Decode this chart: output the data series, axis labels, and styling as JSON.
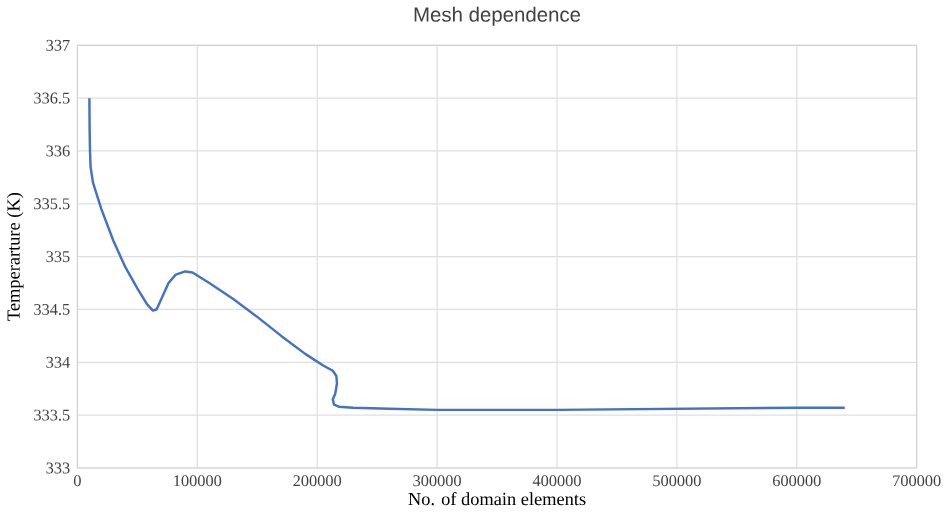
{
  "chart_data": {
    "type": "line",
    "title": "Mesh dependence",
    "xlabel": "No. of domain elements",
    "ylabel": "Temperarture (K)",
    "series": [
      {
        "color": "#4472c4",
        "x": [
          10000,
          10200,
          10500,
          11000,
          13000,
          20000,
          30000,
          40000,
          50000,
          58000,
          63000,
          66000,
          70000,
          76000,
          82000,
          90000,
          96000,
          110000,
          130000,
          150000,
          170000,
          190000,
          205000,
          213000,
          216000,
          216500,
          215000,
          213000,
          214000,
          218000,
          230000,
          260000,
          300000,
          400000,
          500000,
          600000,
          640000
        ],
        "values": [
          336.5,
          336.2,
          336.0,
          335.85,
          335.7,
          335.45,
          335.15,
          334.9,
          334.7,
          334.55,
          334.49,
          334.5,
          334.6,
          334.75,
          334.83,
          334.86,
          334.85,
          334.75,
          334.6,
          334.43,
          334.25,
          334.08,
          333.97,
          333.92,
          333.87,
          333.8,
          333.7,
          333.65,
          333.6,
          333.58,
          333.57,
          333.56,
          333.55,
          333.55,
          333.56,
          333.57,
          333.57
        ]
      }
    ],
    "xlim": [
      0,
      700000
    ],
    "xticks": [
      0,
      100000,
      200000,
      300000,
      400000,
      500000,
      600000,
      700000
    ],
    "ylim": [
      333,
      337
    ],
    "yticks": [
      333,
      333.5,
      334,
      334.5,
      335,
      335.5,
      336,
      336.5,
      337
    ],
    "grid": true,
    "marker": "none",
    "line_style": "solid"
  }
}
